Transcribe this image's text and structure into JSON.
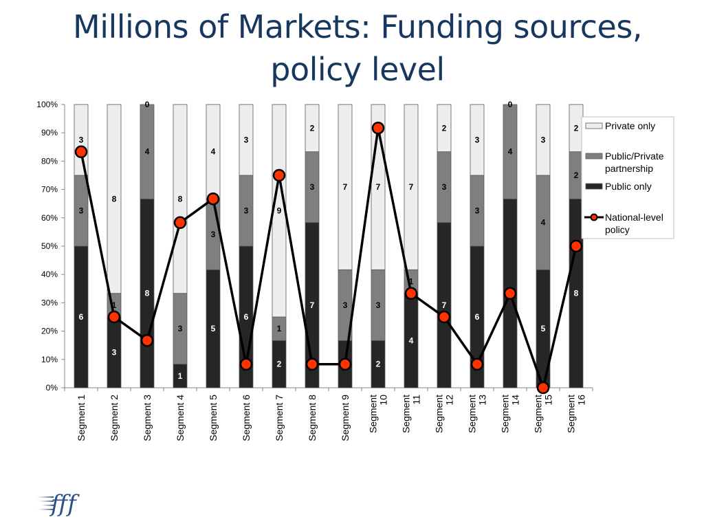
{
  "title": "Millions of Markets: Funding sources, policy level",
  "logo_text": "fff",
  "chart_data": {
    "type": "bar",
    "stacked": "percent",
    "categories": [
      "Segment 1",
      "Segment 2",
      "Segment 3",
      "Segment 4",
      "Segment 5",
      "Segment 6",
      "Segment 7",
      "Segment 8",
      "Segment 9",
      "Segment 10",
      "Segment 11",
      "Segment 12",
      "Segment 13",
      "Segment 14",
      "Segment 15",
      "Segment 16"
    ],
    "category_lines": [
      [
        "Segment 1"
      ],
      [
        "Segment 2"
      ],
      [
        "Segment 3"
      ],
      [
        "Segment 4"
      ],
      [
        "Segment 5"
      ],
      [
        "Segment 6"
      ],
      [
        "Segment 7"
      ],
      [
        "Segment 8"
      ],
      [
        "Segment 9"
      ],
      [
        "Segment",
        "10"
      ],
      [
        "Segment",
        "11"
      ],
      [
        "Segment",
        "12"
      ],
      [
        "Segment",
        "13"
      ],
      [
        "Segment",
        "14"
      ],
      [
        "Segment",
        "15"
      ],
      [
        "Segment",
        "16"
      ]
    ],
    "series": [
      {
        "name": "Public only",
        "type": "bar",
        "color": "#262626",
        "label_color": "#ffffff",
        "values": [
          6,
          3,
          8,
          1,
          5,
          6,
          2,
          7,
          2,
          2,
          4,
          7,
          6,
          8,
          5,
          8
        ]
      },
      {
        "name": "Public/Private partnership",
        "type": "bar",
        "color": "#7f7f7f",
        "label_color": "#000000",
        "values": [
          3,
          1,
          4,
          3,
          3,
          3,
          1,
          3,
          3,
          3,
          1,
          3,
          3,
          4,
          4,
          2
        ]
      },
      {
        "name": "Private only",
        "type": "bar",
        "color": "#eeeeee",
        "label_color": "#000000",
        "values": [
          3,
          8,
          0,
          8,
          4,
          3,
          9,
          2,
          7,
          7,
          7,
          2,
          3,
          0,
          3,
          2
        ]
      },
      {
        "name": "National-level policy",
        "type": "line",
        "color": "#000000",
        "marker_color": "#ff3300",
        "values": [
          83.3,
          25,
          16.7,
          58.3,
          66.7,
          8.3,
          75,
          8.3,
          8.3,
          91.7,
          33.3,
          25,
          8.3,
          33.3,
          0,
          50
        ]
      }
    ],
    "yticks": [
      "0%",
      "10%",
      "20%",
      "30%",
      "40%",
      "50%",
      "60%",
      "70%",
      "80%",
      "90%",
      "100%"
    ],
    "ylim": [
      0,
      100
    ],
    "legend_position": "right",
    "grid": false
  }
}
